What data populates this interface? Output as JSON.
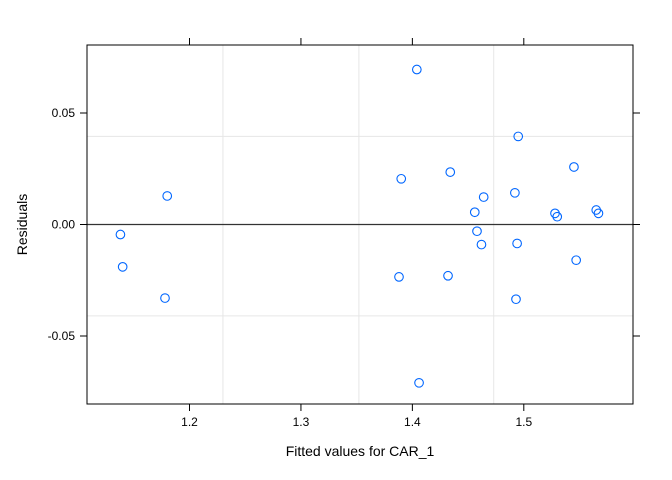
{
  "chart_data": {
    "type": "scatter",
    "xlabel": "Fitted values for CAR_1",
    "ylabel": "Residuals",
    "xlim": [
      1.108,
      1.598
    ],
    "ylim": [
      -0.0805,
      0.0805
    ],
    "x_ticks": [
      1.2,
      1.3,
      1.4,
      1.5
    ],
    "x_tick_labels": [
      "1.2",
      "1.3",
      "1.4",
      "1.5"
    ],
    "y_ticks": [
      -0.05,
      0.0,
      0.05
    ],
    "y_tick_labels": [
      "-0.05",
      "0.00",
      "0.05"
    ],
    "reference_line": 0.0,
    "grid_x": [
      1.23,
      1.352,
      1.473
    ],
    "grid_y": [
      -0.041,
      0.0395
    ],
    "marker_color": "#0066ff",
    "points": [
      {
        "x": 1.138,
        "y": -0.0045
      },
      {
        "x": 1.14,
        "y": -0.019
      },
      {
        "x": 1.178,
        "y": -0.033
      },
      {
        "x": 1.18,
        "y": 0.0128
      },
      {
        "x": 1.388,
        "y": -0.0235
      },
      {
        "x": 1.39,
        "y": 0.0205
      },
      {
        "x": 1.404,
        "y": 0.0695
      },
      {
        "x": 1.406,
        "y": -0.071
      },
      {
        "x": 1.432,
        "y": -0.023
      },
      {
        "x": 1.434,
        "y": 0.0235
      },
      {
        "x": 1.456,
        "y": 0.0055
      },
      {
        "x": 1.458,
        "y": -0.003
      },
      {
        "x": 1.462,
        "y": -0.009
      },
      {
        "x": 1.464,
        "y": 0.0123
      },
      {
        "x": 1.492,
        "y": 0.0142
      },
      {
        "x": 1.493,
        "y": -0.0335
      },
      {
        "x": 1.494,
        "y": -0.0085
      },
      {
        "x": 1.495,
        "y": 0.0395
      },
      {
        "x": 1.528,
        "y": 0.005
      },
      {
        "x": 1.53,
        "y": 0.0035
      },
      {
        "x": 1.545,
        "y": 0.0258
      },
      {
        "x": 1.547,
        "y": -0.016
      },
      {
        "x": 1.565,
        "y": 0.0065
      },
      {
        "x": 1.567,
        "y": 0.005
      }
    ]
  }
}
